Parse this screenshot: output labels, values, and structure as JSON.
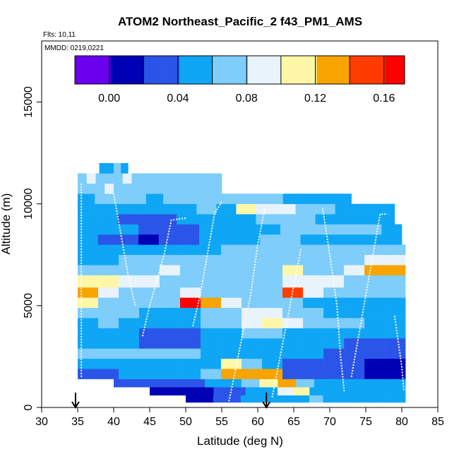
{
  "header": {
    "title": "ATOM2 Northeast_Pacific_2 f43_PM1_AMS",
    "flights_note": "Flts: 10,11",
    "date_note": "MMDD: 0219,0221"
  },
  "chart_data": {
    "type": "heatmap",
    "title": "ATOM2 Northeast_Pacific_2 f43_PM1_AMS",
    "xlabel": "Latitude (deg N)",
    "ylabel": "Altitude (m)",
    "xlim": [
      30,
      85
    ],
    "ylim": [
      0,
      18000
    ],
    "x_ticks": [
      "30",
      "35",
      "40",
      "45",
      "50",
      "55",
      "60",
      "65",
      "70",
      "75",
      "80",
      "85"
    ],
    "y_ticks": [
      "0",
      "5000",
      "10000",
      "15000"
    ],
    "grid": false,
    "colorbar": {
      "placement": "top-inside",
      "range": [
        -0.02,
        0.172
      ],
      "ticks": [
        "0.00",
        "0.04",
        "0.08",
        "0.12",
        "0.16"
      ],
      "tick_values": [
        0.0,
        0.04,
        0.08,
        0.12,
        0.16
      ],
      "breaks": [
        -0.02,
        0.0,
        0.02,
        0.04,
        0.06,
        0.08,
        0.1,
        0.12,
        0.14,
        0.16,
        0.172
      ],
      "colors": [
        "#6a00ee",
        "#0000b4",
        "#2b55e8",
        "#0fa6f5",
        "#7ecdfb",
        "#e8f3fb",
        "#fff7a8",
        "#f7a400",
        "#ff3b00",
        "#ff0000",
        "#8b1a1a"
      ]
    },
    "arrows_latitude": [
      34.7,
      61.2
    ],
    "layers": [
      {
        "alt": [
          250,
          600
        ],
        "lat": [
          50,
          80.5
        ],
        "values": [
          0.0,
          0.01,
          0.02,
          0.03,
          0.04,
          0.045,
          0.05,
          0.04,
          0.05,
          0.06,
          0.05,
          0.05,
          0.05,
          0.04,
          0.04,
          0.04
        ]
      },
      {
        "alt": [
          600,
          1000
        ],
        "lat": [
          45,
          80.5
        ],
        "values": [
          0.0,
          0.0,
          0.01,
          0.015,
          0.02,
          0.03,
          0.04,
          0.05,
          0.08,
          0.1,
          0.05,
          0.04,
          0.05,
          0.05,
          0.05,
          0.04
        ]
      },
      {
        "alt": [
          1000,
          1400
        ],
        "lat": [
          40,
          80.5
        ],
        "values": [
          0.02,
          0.025,
          0.03,
          0.03,
          0.035,
          0.04,
          0.05,
          0.06,
          0.11,
          0.12,
          0.07,
          0.05,
          0.045,
          0.05,
          0.05,
          0.05
        ]
      },
      {
        "alt": [
          1400,
          1900
        ],
        "lat": [
          35,
          80.5
        ],
        "values": [
          0.03,
          0.035,
          0.04,
          0.045,
          0.05,
          0.05,
          0.06,
          0.12,
          0.12,
          0.12,
          0.03,
          0.025,
          0.02,
          0.02,
          0.015,
          0.01
        ]
      },
      {
        "alt": [
          1900,
          2400
        ],
        "lat": [
          35,
          80.5
        ],
        "values": [
          0.04,
          0.045,
          0.05,
          0.05,
          0.045,
          0.04,
          0.045,
          0.1,
          0.06,
          0.05,
          0.03,
          0.025,
          0.02,
          0.02,
          0.015,
          0.015
        ]
      },
      {
        "alt": [
          2400,
          2900
        ],
        "lat": [
          35,
          80.5
        ],
        "values": [
          0.06,
          0.06,
          0.065,
          0.07,
          0.065,
          0.06,
          0.055,
          0.05,
          0.05,
          0.05,
          0.04,
          0.04,
          0.035,
          0.03,
          0.03,
          0.03
        ]
      },
      {
        "alt": [
          2900,
          3400
        ],
        "lat": [
          35,
          80.5
        ],
        "values": [
          0.045,
          0.045,
          0.04,
          0.035,
          0.03,
          0.035,
          0.04,
          0.04,
          0.045,
          0.05,
          0.045,
          0.04,
          0.04,
          0.035,
          0.035,
          0.03
        ]
      },
      {
        "alt": [
          3400,
          3900
        ],
        "lat": [
          35,
          80.5
        ],
        "values": [
          0.04,
          0.05,
          0.045,
          0.035,
          0.03,
          0.035,
          0.045,
          0.05,
          0.06,
          0.06,
          0.055,
          0.05,
          0.05,
          0.045,
          0.045,
          0.04
        ]
      },
      {
        "alt": [
          3900,
          4400
        ],
        "lat": [
          35,
          80.5
        ],
        "values": [
          0.05,
          0.06,
          0.055,
          0.05,
          0.045,
          0.05,
          0.06,
          0.065,
          0.09,
          0.1,
          0.08,
          0.065,
          0.06,
          0.06,
          0.055,
          0.055
        ]
      },
      {
        "alt": [
          4400,
          4900
        ],
        "lat": [
          35,
          80.5
        ],
        "values": [
          0.07,
          0.065,
          0.06,
          0.055,
          0.05,
          0.055,
          0.065,
          0.075,
          0.08,
          0.085,
          0.07,
          0.06,
          0.055,
          0.05,
          0.05,
          0.05
        ]
      },
      {
        "alt": [
          4900,
          5400
        ],
        "lat": [
          35,
          80.5
        ],
        "values": [
          0.1,
          0.07,
          0.065,
          0.06,
          0.07,
          0.16,
          0.12,
          0.09,
          0.07,
          0.065,
          0.06,
          0.055,
          0.05,
          0.05,
          0.045,
          0.045
        ]
      },
      {
        "alt": [
          5400,
          5900
        ],
        "lat": [
          35,
          80.5
        ],
        "values": [
          0.12,
          0.08,
          0.07,
          0.065,
          0.07,
          0.08,
          0.075,
          0.07,
          0.07,
          0.065,
          0.15,
          0.08,
          0.07,
          0.065,
          0.06,
          0.06
        ]
      },
      {
        "alt": [
          5900,
          6500
        ],
        "lat": [
          35,
          80.5
        ],
        "values": [
          0.11,
          0.1,
          0.09,
          0.08,
          0.075,
          0.07,
          0.065,
          0.065,
          0.07,
          0.075,
          0.085,
          0.09,
          0.08,
          0.075,
          0.07,
          0.07
        ]
      },
      {
        "alt": [
          6500,
          7000
        ],
        "lat": [
          35,
          80.5
        ],
        "values": [
          0.06,
          0.065,
          0.07,
          0.075,
          0.08,
          0.075,
          0.07,
          0.065,
          0.07,
          0.075,
          0.1,
          0.07,
          0.075,
          0.09,
          0.12,
          0.12
        ]
      },
      {
        "alt": [
          7000,
          7500
        ],
        "lat": [
          35,
          80.5
        ],
        "values": [
          0.05,
          0.055,
          0.06,
          0.06,
          0.065,
          0.07,
          0.075,
          0.075,
          0.07,
          0.065,
          0.06,
          0.065,
          0.07,
          0.075,
          0.08,
          0.08
        ]
      },
      {
        "alt": [
          7500,
          8000
        ],
        "lat": [
          35,
          80.5
        ],
        "values": [
          0.045,
          0.045,
          0.04,
          0.04,
          0.045,
          0.05,
          0.055,
          0.06,
          0.065,
          0.07,
          0.065,
          0.06,
          0.06,
          0.065,
          0.07,
          0.07
        ]
      },
      {
        "alt": [
          8000,
          8500
        ],
        "lat": [
          35,
          80
        ],
        "values": [
          0.04,
          0.035,
          0.03,
          0.0,
          0.02,
          0.035,
          0.045,
          0.05,
          0.055,
          0.06,
          0.06,
          0.055,
          0.05,
          0.05,
          0.045,
          0.045
        ]
      },
      {
        "alt": [
          8500,
          9000
        ],
        "lat": [
          35,
          80
        ],
        "values": [
          0.05,
          0.045,
          0.04,
          0.035,
          0.03,
          0.035,
          0.04,
          0.045,
          0.05,
          0.055,
          0.06,
          0.065,
          0.07,
          0.065,
          0.06,
          0.055
        ]
      },
      {
        "alt": [
          9000,
          9500
        ],
        "lat": [
          35,
          79
        ],
        "values": [
          0.045,
          0.04,
          0.035,
          0.03,
          0.035,
          0.04,
          0.045,
          0.05,
          0.055,
          0.06,
          0.065,
          0.06,
          0.055,
          0.05,
          0.045,
          0.04
        ]
      },
      {
        "alt": [
          9500,
          10000
        ],
        "lat": [
          35,
          79
        ],
        "values": [
          0.05,
          0.055,
          0.05,
          0.045,
          0.05,
          0.055,
          0.06,
          0.05,
          0.11,
          0.09,
          0.08,
          0.065,
          0.06,
          0.055,
          0.05,
          0.05
        ]
      },
      {
        "alt": [
          10000,
          10500
        ],
        "lat": [
          35,
          73
        ],
        "values": [
          0.055,
          0.06,
          0.065,
          0.06,
          0.055,
          0.06,
          0.065,
          0.07,
          0.075,
          0.07,
          0.065,
          0.06,
          0.055,
          0.05,
          0.05,
          0.05
        ]
      },
      {
        "alt": [
          10500,
          11000
        ],
        "lat": [
          35,
          55
        ],
        "values": [
          0.065,
          0.07,
          0.075,
          0.08,
          0.075,
          0.07,
          0.065,
          0.07,
          0.075,
          0.07,
          0.065,
          0.06,
          0.065,
          0.07,
          0.065,
          0.06
        ]
      },
      {
        "alt": [
          11000,
          11500
        ],
        "lat": [
          35,
          55
        ],
        "values": [
          0.075,
          0.08,
          0.075,
          0.07,
          0.075,
          0.08,
          0.075,
          0.07,
          0.065,
          0.07,
          0.075,
          0.07,
          0.065,
          0.07,
          0.075,
          0.07
        ]
      },
      {
        "alt": [
          11500,
          12000
        ],
        "lat": [
          38,
          42
        ],
        "values": [
          0.05,
          0.055,
          0.06,
          0.055
        ]
      }
    ],
    "flight_tracks": [
      [
        [
          35.5,
          1500
        ],
        [
          35.5,
          11000
        ]
      ],
      [
        [
          40,
          10500
        ],
        [
          41,
          8500
        ],
        [
          42,
          6500
        ],
        [
          43,
          5000
        ]
      ],
      [
        [
          44,
          3500
        ],
        [
          45,
          5000
        ],
        [
          47,
          7500
        ],
        [
          48,
          9200
        ],
        [
          50,
          9300
        ]
      ],
      [
        [
          51,
          4000
        ],
        [
          52,
          5500
        ],
        [
          53,
          7500
        ],
        [
          54,
          9500
        ],
        [
          55,
          10100
        ]
      ],
      [
        [
          56,
          300
        ],
        [
          57,
          2000
        ],
        [
          58,
          3800
        ],
        [
          59,
          5500
        ],
        [
          60,
          8000
        ],
        [
          61,
          9800
        ]
      ],
      [
        [
          62,
          500
        ],
        [
          63,
          2300
        ],
        [
          64,
          4100
        ],
        [
          65,
          6000
        ],
        [
          66,
          7800
        ]
      ],
      [
        [
          69,
          9800
        ],
        [
          70,
          7500
        ],
        [
          71,
          5000
        ],
        [
          71.5,
          2500
        ],
        [
          72,
          800
        ]
      ],
      [
        [
          73,
          1500
        ],
        [
          74,
          3500
        ],
        [
          75,
          5500
        ],
        [
          76,
          7500
        ],
        [
          77,
          9500
        ],
        [
          78,
          9500
        ]
      ],
      [
        [
          79,
          4500
        ],
        [
          80,
          2000
        ],
        [
          80.3,
          800
        ]
      ]
    ]
  }
}
